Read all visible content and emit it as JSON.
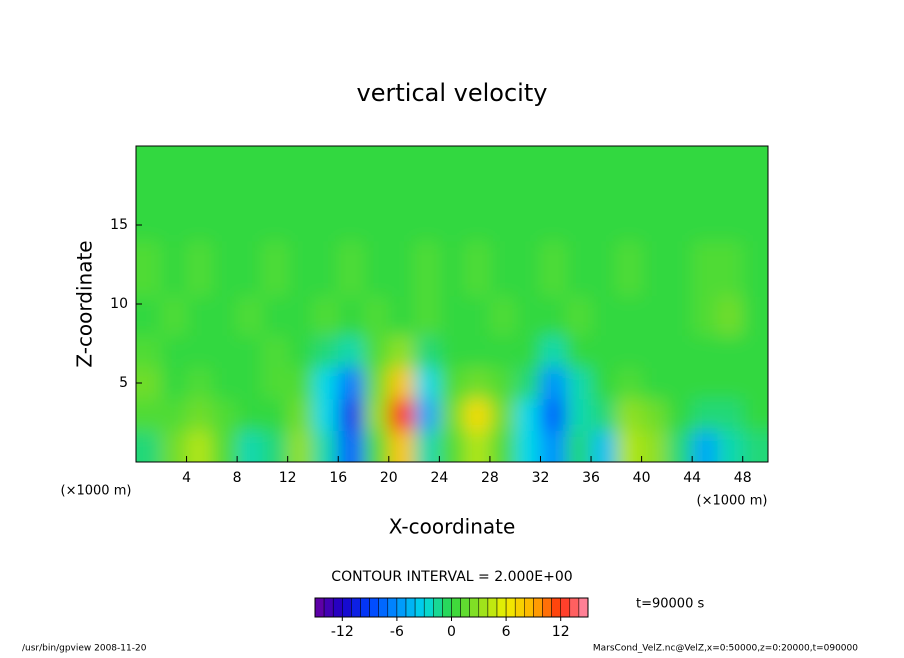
{
  "chart_data": {
    "type": "contour",
    "title": "vertical velocity",
    "x_label": "X-coordinate",
    "y_label": "Z-coordinate",
    "x_unit": "(×1000 m)",
    "y_unit": "(×1000 m)",
    "contour_interval": "CONTOUR INTERVAL = 2.000E+00",
    "time_label": "t=90000 s",
    "footer_left": "/usr/bin/gpview   2008-11-20",
    "footer_right": "MarsCond_VelZ.nc@VelZ,x=0:50000,z=0:20000,t=090000",
    "xlim": [
      0,
      50
    ],
    "ylim": [
      0,
      20
    ],
    "xticks": [
      4,
      8,
      12,
      16,
      20,
      24,
      28,
      32,
      36,
      40,
      44,
      48
    ],
    "yticks": [
      5,
      10,
      15
    ],
    "x": [
      1,
      3,
      5,
      7,
      9,
      11,
      13,
      15,
      17,
      19,
      21,
      23,
      25,
      27,
      29,
      31,
      33,
      35,
      37,
      39,
      41,
      43,
      45,
      47,
      49
    ],
    "z": [
      1,
      3,
      5,
      7,
      9,
      12,
      16
    ],
    "values": [
      [
        -1,
        2,
        4,
        1,
        -2,
        -1,
        3,
        -2,
        -8,
        1,
        8,
        -2,
        1,
        4,
        1,
        -3,
        -6,
        -1,
        -4,
        4,
        3,
        -1,
        -5,
        -2,
        -1
      ],
      [
        1,
        1,
        2,
        1,
        0,
        0,
        2,
        -3,
        -10,
        3,
        12,
        -5,
        2,
        7,
        2,
        -3,
        -8,
        -2,
        -1,
        3,
        2,
        0,
        -1,
        -1,
        0
      ],
      [
        2,
        0,
        1,
        0,
        0,
        1,
        1,
        -3,
        -7,
        2,
        8,
        -3,
        1,
        2,
        1,
        -1,
        -6,
        -2,
        0,
        1,
        0,
        0,
        0,
        0,
        0
      ],
      [
        1,
        0,
        0,
        0,
        0,
        1,
        0,
        -1,
        -2,
        1,
        3,
        -1,
        0,
        0,
        0,
        0,
        -2,
        0,
        0,
        0,
        0,
        0,
        0,
        0,
        0
      ],
      [
        0,
        1,
        0,
        0,
        1,
        0,
        0,
        1,
        0,
        1,
        0,
        1,
        0,
        0,
        1,
        0,
        0,
        1,
        0,
        0,
        0,
        0,
        1,
        2,
        0
      ],
      [
        1,
        0,
        1,
        0,
        0,
        1,
        0,
        0,
        1,
        0,
        0,
        1,
        0,
        1,
        0,
        0,
        1,
        0,
        0,
        1,
        0,
        0,
        1,
        1,
        0
      ],
      [
        0,
        0,
        0,
        0,
        0,
        0,
        0,
        0,
        0,
        0,
        0,
        0,
        0,
        0,
        0,
        0,
        0,
        0,
        0,
        0,
        0,
        0,
        0,
        0,
        0
      ]
    ],
    "clim": [
      -15,
      15
    ],
    "cticks": [
      -12,
      -6,
      0,
      6,
      12
    ],
    "colors": [
      "#6a00a0",
      "#1a00c8",
      "#0040ff",
      "#0090ff",
      "#00d8e8",
      "#30d840",
      "#90e020",
      "#f0f000",
      "#ffb000",
      "#ff3010",
      "#ff90b0"
    ]
  }
}
